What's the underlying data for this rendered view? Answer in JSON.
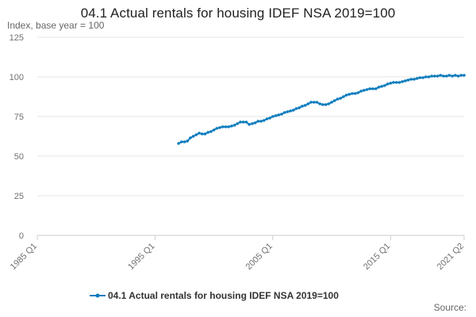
{
  "header": {
    "title": "04.1 Actual rentals for housing IDEF NSA 2019=100",
    "subtitle": "Index, base year = 100"
  },
  "footer": {
    "source_label": "Source:"
  },
  "colors": {
    "series": "#0d7cbd",
    "grid": "#e6e6e6",
    "axis": "#cccccc"
  },
  "chart_data": {
    "type": "line",
    "title": "04.1 Actual rentals for housing IDEF NSA 2019=100",
    "ylabel": "Index, base year = 100",
    "xlabel": "",
    "ylim": [
      0,
      125
    ],
    "yticks": [
      0,
      25,
      50,
      75,
      100,
      125
    ],
    "xlim": [
      1985.0,
      2021.25
    ],
    "xticks": [
      {
        "value": 1985.0,
        "label": "1985 Q1"
      },
      {
        "value": 1995.0,
        "label": "1995 Q1"
      },
      {
        "value": 2005.0,
        "label": "2005 Q1"
      },
      {
        "value": 2015.0,
        "label": "2015 Q1"
      },
      {
        "value": 2021.25,
        "label": "2021 Q2"
      }
    ],
    "grid": true,
    "legend_position": "bottom",
    "series": [
      {
        "name": "04.1 Actual rentals for housing IDEF NSA 2019=100",
        "color": "#0d7cbd",
        "x": [
          1997.0,
          1997.25,
          1997.5,
          1997.75,
          1998.0,
          1998.25,
          1998.5,
          1998.75,
          1999.0,
          1999.25,
          1999.5,
          1999.75,
          2000.0,
          2000.25,
          2000.5,
          2000.75,
          2001.0,
          2001.25,
          2001.5,
          2001.75,
          2002.0,
          2002.25,
          2002.5,
          2002.75,
          2003.0,
          2003.25,
          2003.5,
          2003.75,
          2004.0,
          2004.25,
          2004.5,
          2004.75,
          2005.0,
          2005.25,
          2005.5,
          2005.75,
          2006.0,
          2006.25,
          2006.5,
          2006.75,
          2007.0,
          2007.25,
          2007.5,
          2007.75,
          2008.0,
          2008.25,
          2008.5,
          2008.75,
          2009.0,
          2009.25,
          2009.5,
          2009.75,
          2010.0,
          2010.25,
          2010.5,
          2010.75,
          2011.0,
          2011.25,
          2011.5,
          2011.75,
          2012.0,
          2012.25,
          2012.5,
          2012.75,
          2013.0,
          2013.25,
          2013.5,
          2013.75,
          2014.0,
          2014.25,
          2014.5,
          2014.75,
          2015.0,
          2015.25,
          2015.5,
          2015.75,
          2016.0,
          2016.25,
          2016.5,
          2016.75,
          2017.0,
          2017.25,
          2017.5,
          2017.75,
          2018.0,
          2018.25,
          2018.5,
          2018.75,
          2019.0,
          2019.25,
          2019.5,
          2019.75,
          2020.0,
          2020.25,
          2020.5,
          2020.75,
          2021.0,
          2021.25
        ],
        "values": [
          58.0,
          59.0,
          59.0,
          59.5,
          61.5,
          62.5,
          63.5,
          64.5,
          64.0,
          64.0,
          65.0,
          65.5,
          66.5,
          67.5,
          68.0,
          68.5,
          68.5,
          68.5,
          69.0,
          69.5,
          70.5,
          71.5,
          71.5,
          71.5,
          70.0,
          70.5,
          71.0,
          72.0,
          72.0,
          72.5,
          73.5,
          74.0,
          75.0,
          75.5,
          76.0,
          76.5,
          77.5,
          78.0,
          78.5,
          79.0,
          80.0,
          80.5,
          81.5,
          82.0,
          83.0,
          84.0,
          84.0,
          84.0,
          83.0,
          82.5,
          82.5,
          83.0,
          84.0,
          85.0,
          86.0,
          86.5,
          87.5,
          88.5,
          89.0,
          89.5,
          89.5,
          90.0,
          91.0,
          91.5,
          92.0,
          92.5,
          92.5,
          92.5,
          93.5,
          94.0,
          94.5,
          95.5,
          96.0,
          96.5,
          96.5,
          96.5,
          97.0,
          97.5,
          98.0,
          98.5,
          98.5,
          99.0,
          99.5,
          99.5,
          100.0,
          100.0,
          100.5,
          100.5,
          100.5,
          101.0,
          100.5,
          100.5,
          101.0,
          100.5,
          101.0,
          100.5,
          101.0,
          101.0
        ]
      }
    ]
  }
}
